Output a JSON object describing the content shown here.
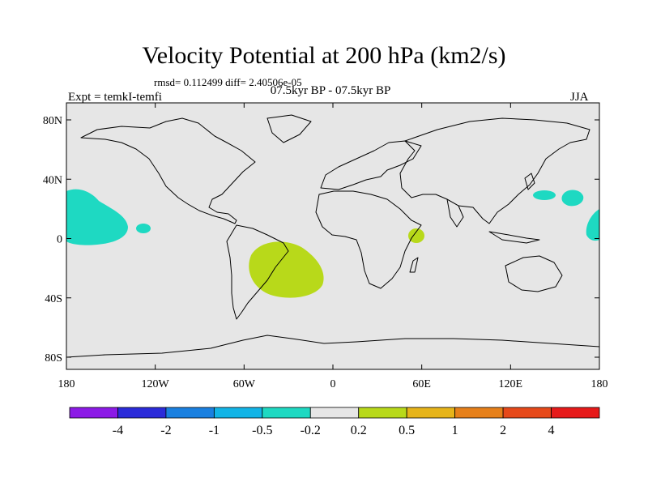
{
  "map": {
    "title": "Velocity Potential at 200 hPa (km2/s)",
    "stats": "rmsd= 0.112499 diff= 2.40506e-05",
    "left_label": "Expt = temkI-temfi",
    "center_label": "07.5kyr BP - 07.5kyr BP",
    "right_label": "JJA",
    "background_color": "#e6e6e6",
    "coastline_color": "#000000",
    "lat_ticks": [
      "80N",
      "40N",
      "0",
      "40S",
      "80S"
    ],
    "lon_ticks": [
      "180",
      "120W",
      "60W",
      "0",
      "60E",
      "120E",
      "180"
    ]
  },
  "colorbar": {
    "colors": [
      "#8c1ae6",
      "#2b2bd9",
      "#1a80e0",
      "#12b4e6",
      "#1ed9c2",
      "#e6e6e6",
      "#b8d91a",
      "#e6b41a",
      "#e6801a",
      "#e6491a",
      "#e61a1a"
    ],
    "labels": [
      "-4",
      "-2",
      "-1",
      "-0.5",
      "-0.2",
      "0.2",
      "0.5",
      "1",
      "2",
      "4"
    ]
  }
}
